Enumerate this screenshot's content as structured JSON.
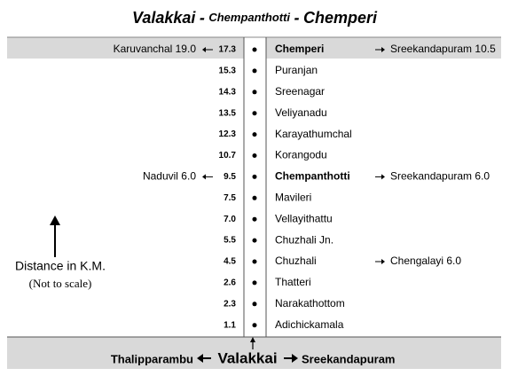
{
  "title": {
    "start": "Valakkai",
    "sep1": "-",
    "middle": "Chempanthotti",
    "sep2": "-",
    "end": "Chemperi"
  },
  "stops": [
    {
      "km": "17.3",
      "name": "Chemperi",
      "bold": true,
      "left": "Karuvanchal 19.0",
      "right": "Sreekandapuram 10.5"
    },
    {
      "km": "15.3",
      "name": "Puranjan"
    },
    {
      "km": "14.3",
      "name": "Sreenagar"
    },
    {
      "km": "13.5",
      "name": "Veliyanadu"
    },
    {
      "km": "12.3",
      "name": "Karayathumchal"
    },
    {
      "km": "10.7",
      "name": "Korangodu"
    },
    {
      "km": "9.5",
      "name": "Chempanthotti",
      "bold": true,
      "left": "Naduvil 6.0",
      "right": "Sreekandapuram 6.0"
    },
    {
      "km": "7.5",
      "name": "Mavileri"
    },
    {
      "km": "7.0",
      "name": "Vellayithattu"
    },
    {
      "km": "5.5",
      "name": "Chuzhali Jn."
    },
    {
      "km": "4.5",
      "name": "Chuzhali",
      "right": "Chengalayi 6.0"
    },
    {
      "km": "2.6",
      "name": "Thatteri"
    },
    {
      "km": "2.3",
      "name": "Narakathottom"
    },
    {
      "km": "1.1",
      "name": "Adichickamala"
    }
  ],
  "legend": {
    "label": "Distance in K.M.",
    "note": "(Not to scale)"
  },
  "footer": {
    "left": "Thalipparambu",
    "center": "Valakkai",
    "right": "Sreekandapuram"
  }
}
